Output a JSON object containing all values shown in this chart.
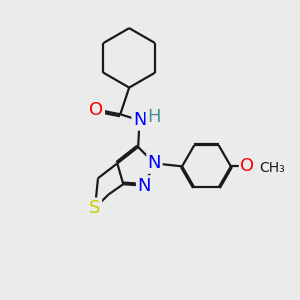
{
  "bg_color": "#ebebeb",
  "bond_color": "#1a1a1a",
  "atoms": {
    "O": {
      "color": "#ff0000",
      "fontsize": 13
    },
    "N": {
      "color": "#0000ff",
      "fontsize": 13
    },
    "S": {
      "color": "#cccc00",
      "fontsize": 13
    },
    "H": {
      "color": "#4a9090",
      "fontsize": 13
    }
  },
  "lw": 1.6,
  "dbo": 0.055
}
